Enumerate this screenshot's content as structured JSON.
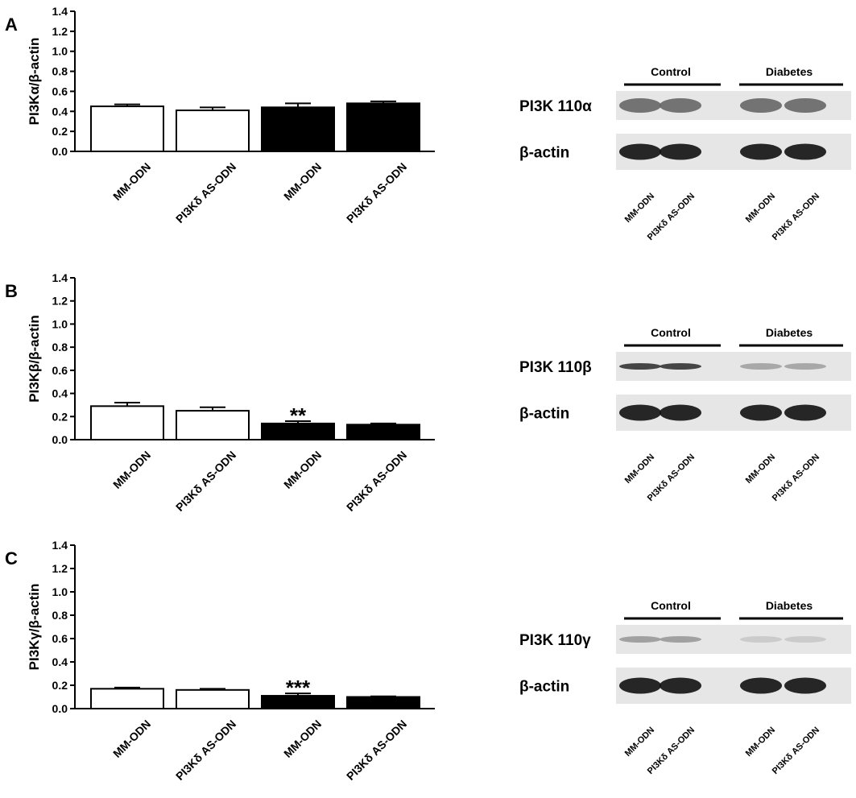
{
  "chart_data": [
    {
      "type": "bar",
      "panel_label": "A",
      "ylabel": "PI3Kα/β-actin",
      "categories": [
        "MM-ODN",
        "PI3Kδ AS-ODN",
        "MM-ODN",
        "PI3Kδ AS-ODN"
      ],
      "values": [
        0.45,
        0.41,
        0.44,
        0.48
      ],
      "errors": [
        0.02,
        0.03,
        0.04,
        0.02
      ],
      "colors": [
        "#ffffff",
        "#ffffff",
        "#000000",
        "#000000"
      ],
      "annotations": [
        null,
        null,
        null,
        null
      ],
      "ylim": [
        0,
        1.4
      ],
      "yticks": [
        {
          "value": 0,
          "label": "0.0"
        },
        0.2,
        0.4,
        0.6,
        0.8,
        {
          "value": 1,
          "label": "1.0"
        },
        1.2,
        1.4
      ]
    },
    {
      "type": "bar",
      "panel_label": "B",
      "ylabel": "PI3Kβ/β-actin",
      "categories": [
        "MM-ODN",
        "PI3Kδ AS-ODN",
        "MM-ODN",
        "PI3Kδ AS-ODN"
      ],
      "values": [
        0.29,
        0.25,
        0.14,
        0.13
      ],
      "errors": [
        0.03,
        0.03,
        0.02,
        0.01
      ],
      "colors": [
        "#ffffff",
        "#ffffff",
        "#000000",
        "#000000"
      ],
      "annotations": [
        null,
        null,
        "**",
        null
      ],
      "ylim": [
        0,
        1.4
      ],
      "yticks": [
        {
          "value": 0,
          "label": "0.0"
        },
        0.2,
        0.4,
        0.6,
        0.8,
        {
          "value": 1,
          "label": "1.0"
        },
        1.2,
        1.4
      ]
    },
    {
      "type": "bar",
      "panel_label": "C",
      "ylabel": "PI3Kγ/β-actin",
      "categories": [
        "MM-ODN",
        "PI3Kδ AS-ODN",
        "MM-ODN",
        "PI3Kδ AS-ODN"
      ],
      "values": [
        0.17,
        0.16,
        0.11,
        0.1
      ],
      "errors": [
        0.01,
        0.01,
        0.02,
        0.005
      ],
      "colors": [
        "#ffffff",
        "#ffffff",
        "#000000",
        "#000000"
      ],
      "annotations": [
        null,
        null,
        "***",
        null
      ],
      "ylim": [
        0,
        1.4
      ],
      "yticks": [
        {
          "value": 0,
          "label": "0.0"
        },
        0.2,
        0.4,
        0.6,
        0.8,
        {
          "value": 1,
          "label": "1.0"
        },
        1.2,
        1.4
      ]
    }
  ],
  "blots": [
    {
      "groups": [
        "Control",
        "Diabetes"
      ],
      "rows": [
        "PI3K 110α",
        "β-actin"
      ],
      "lanes": [
        "MM-ODN",
        "PI3Kδ AS-ODN",
        "MM-ODN",
        "PI3Kδ AS-ODN"
      ]
    },
    {
      "groups": [
        "Control",
        "Diabetes"
      ],
      "rows": [
        "PI3K 110β",
        "β-actin"
      ],
      "lanes": [
        "MM-ODN",
        "PI3Kδ AS-ODN",
        "MM-ODN",
        "PI3Kδ AS-ODN"
      ]
    },
    {
      "groups": [
        "Control",
        "Diabetes"
      ],
      "rows": [
        "PI3K 110γ",
        "β-actin"
      ],
      "lanes": [
        "MM-ODN",
        "PI3Kδ AS-ODN",
        "MM-ODN",
        "PI3Kδ AS-ODN"
      ]
    }
  ]
}
